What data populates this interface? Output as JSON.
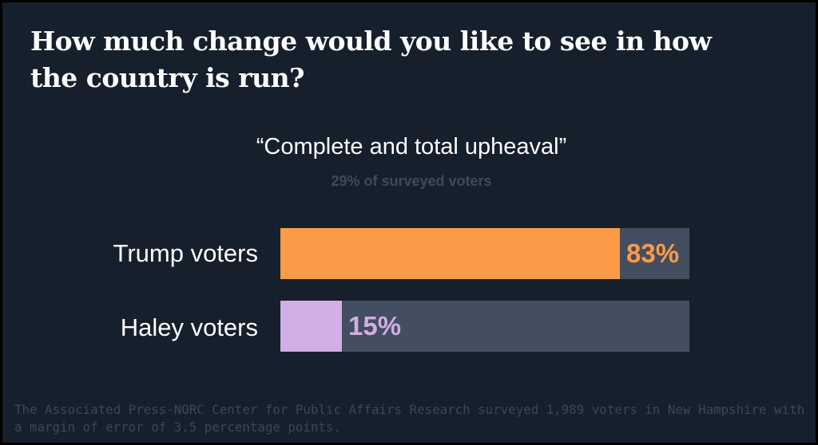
{
  "colors": {
    "background": "#161f2c",
    "track": "#434e61",
    "trump": "#fb9b48",
    "haley": "#d1aee5"
  },
  "chart_data": {
    "type": "bar",
    "orientation": "horizontal",
    "title": "How much change would you like to see in how the country is run?",
    "subtitle": "“Complete and total upheaval”",
    "subnote": "29% of surveyed voters",
    "categories": [
      "Trump voters",
      "Haley voters"
    ],
    "values": [
      83,
      15
    ],
    "value_labels": [
      "83%",
      "15%"
    ],
    "xlim": [
      0,
      100
    ],
    "grid": false,
    "legend": "none"
  },
  "footnote": "The Associated Press-NORC Center for Public Affairs Research surveyed 1,989 voters in New Hampshire with a margin of error of 3.5 percentage points."
}
